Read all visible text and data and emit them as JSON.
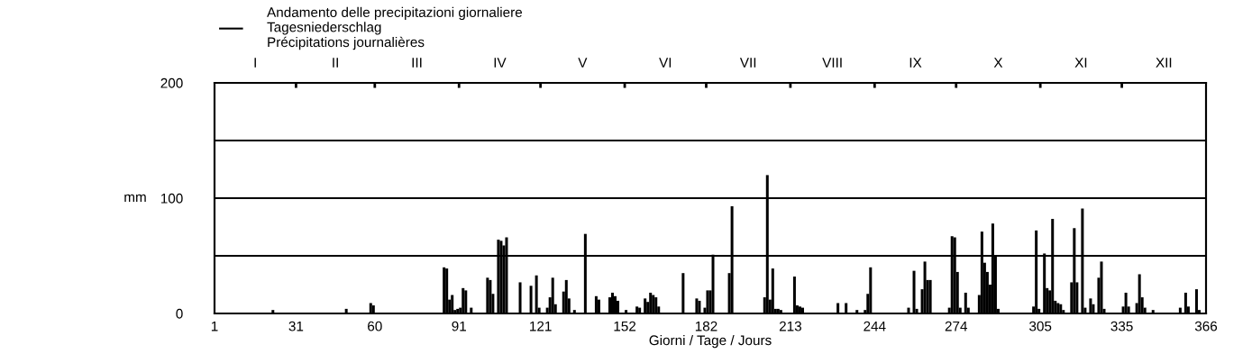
{
  "chart_data": {
    "type": "bar",
    "xlabel": "Giorni / Tage / Jours",
    "ylabel": "mm",
    "x": [
      22,
      49,
      58,
      59,
      85,
      86,
      87,
      88,
      89,
      90,
      91,
      92,
      93,
      95,
      101,
      102,
      103,
      105,
      106,
      107,
      108,
      113,
      117,
      119,
      120,
      123,
      124,
      125,
      126,
      129,
      130,
      131,
      133,
      137,
      141,
      142,
      146,
      147,
      148,
      149,
      152,
      156,
      157,
      159,
      160,
      161,
      162,
      163,
      164,
      173,
      178,
      179,
      181,
      182,
      183,
      184,
      190,
      191,
      203,
      204,
      205,
      206,
      207,
      208,
      209,
      214,
      215,
      216,
      217,
      230,
      233,
      237,
      240,
      241,
      242,
      256,
      258,
      259,
      261,
      262,
      263,
      264,
      271,
      272,
      273,
      274,
      275,
      277,
      278,
      282,
      283,
      284,
      285,
      286,
      287,
      288,
      289,
      302,
      303,
      304,
      306,
      307,
      308,
      309,
      310,
      311,
      312,
      313,
      316,
      317,
      318,
      320,
      321,
      323,
      324,
      326,
      327,
      328,
      335,
      336,
      337,
      340,
      341,
      342,
      343,
      346,
      356,
      358,
      359,
      362,
      363
    ],
    "series": [
      {
        "name": "Andamento delle precipitazioni giornaliere\nTagesniederschlag\nPrécipitations journalières",
        "color": "#000000",
        "values": [
          3,
          4,
          9,
          7,
          40,
          39,
          12,
          16,
          3,
          4,
          5,
          22,
          20,
          5,
          31,
          29,
          17,
          64,
          63,
          59,
          66,
          27,
          24,
          33,
          5,
          5,
          14,
          31,
          8,
          19,
          29,
          13,
          3,
          69,
          15,
          12,
          14,
          18,
          15,
          11,
          3,
          6,
          5,
          13,
          10,
          18,
          16,
          14,
          6,
          35,
          13,
          11,
          5,
          20,
          20,
          51,
          35,
          93,
          14,
          120,
          12,
          39,
          4,
          4,
          3,
          32,
          7,
          6,
          5,
          9,
          9,
          3,
          3,
          17,
          40,
          5,
          37,
          4,
          21,
          45,
          29,
          29,
          5,
          67,
          66,
          36,
          5,
          18,
          5,
          16,
          71,
          44,
          36,
          25,
          78,
          50,
          4,
          6,
          72,
          4,
          52,
          22,
          20,
          82,
          11,
          9,
          8,
          3,
          27,
          74,
          27,
          91,
          5,
          13,
          8,
          31,
          45,
          4,
          6,
          18,
          6,
          9,
          34,
          14,
          5,
          3,
          5,
          18,
          6,
          21,
          3
        ]
      }
    ],
    "xlim": [
      1,
      366
    ],
    "xticks": [
      1,
      31,
      60,
      91,
      121,
      152,
      182,
      213,
      244,
      274,
      305,
      335,
      366
    ],
    "annotations": [
      "I",
      "II",
      "III",
      "IV",
      "V",
      "VI",
      "VII",
      "VIII",
      "IX",
      "X",
      "XI",
      "XII"
    ],
    "ylim": [
      0,
      200
    ],
    "yticks": [
      0,
      {
        "value": 50,
        "label": null
      },
      100,
      {
        "value": 150,
        "label": null
      },
      200
    ],
    "grid": "y",
    "legend": "top left"
  }
}
